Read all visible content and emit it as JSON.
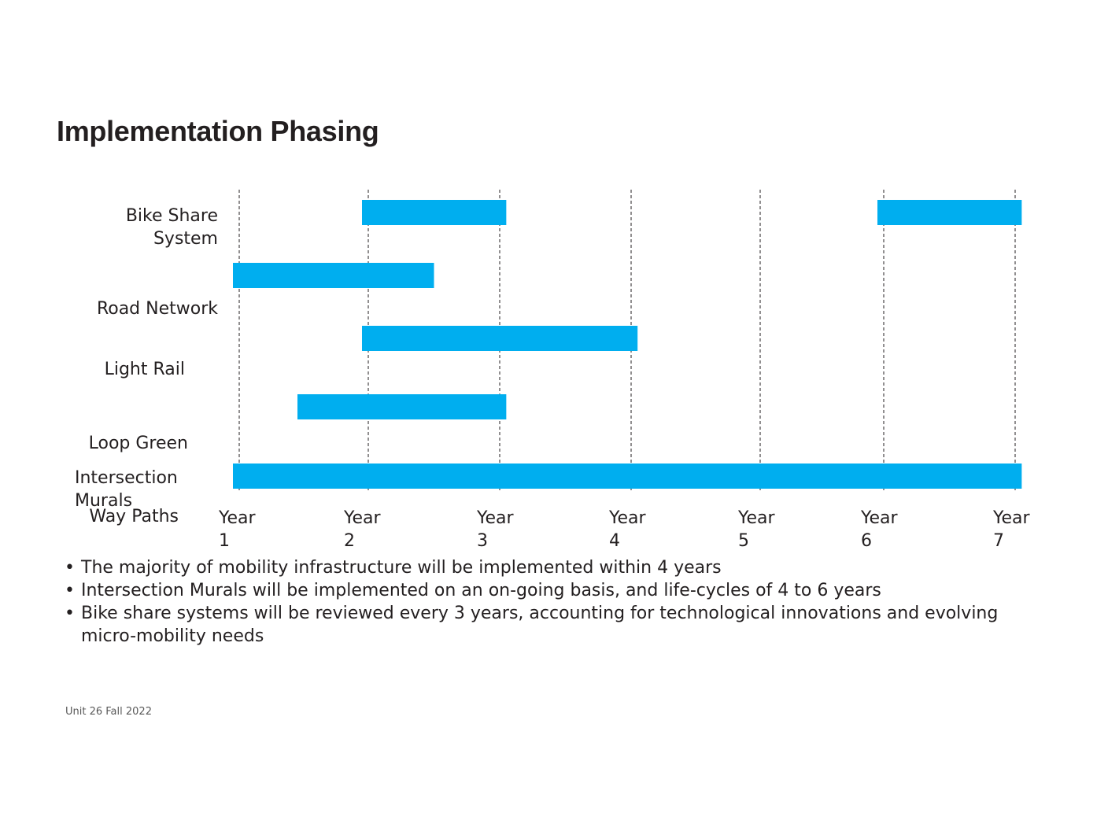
{
  "page_title": "Implementation Phasing",
  "chart_data": {
    "type": "gantt",
    "title": "",
    "bar_color": "#00aeef",
    "grid": "vertical dashed lines at each year",
    "x_ticks": [
      {
        "line1": "Year",
        "line2": "1"
      },
      {
        "line1": "Year",
        "line2": "2"
      },
      {
        "line1": "Year",
        "line2": "3"
      },
      {
        "line1": "Year",
        "line2": "4"
      },
      {
        "line1": "Year",
        "line2": "5"
      },
      {
        "line1": "Year",
        "line2": "6"
      },
      {
        "line1": "Year",
        "line2": "7"
      }
    ],
    "xlim": [
      1,
      7
    ],
    "row_labels": [
      [
        "Bike Share",
        "System"
      ],
      [
        "Road Network"
      ],
      [
        "Light Rail"
      ],
      [
        "Loop Green"
      ],
      [
        "Intersection",
        "Murals"
      ],
      [
        "Way Paths"
      ]
    ],
    "bars": [
      {
        "row": 1,
        "start": 2.0,
        "end": 3.05
      },
      {
        "row": 1,
        "start": 6.0,
        "end": 7.05
      },
      {
        "row": 2,
        "start": 1.0,
        "end": 2.5
      },
      {
        "row": 3,
        "start": 2.0,
        "end": 4.05
      },
      {
        "row": 4,
        "start": 1.5,
        "end": 3.05
      },
      {
        "row": 5,
        "start": 1.0,
        "end": 7.05
      }
    ]
  },
  "bullets": [
    "The majority of mobility infrastructure will be implemented within 4 years",
    "Intersection Murals will be implemented on an on-going basis, and life-cycles of 4 to 6 years",
    "Bike share systems will be reviewed every 3 years, accounting for technological innovations and evolving micro-mobility needs"
  ],
  "footer": "Unit 26 Fall 2022"
}
